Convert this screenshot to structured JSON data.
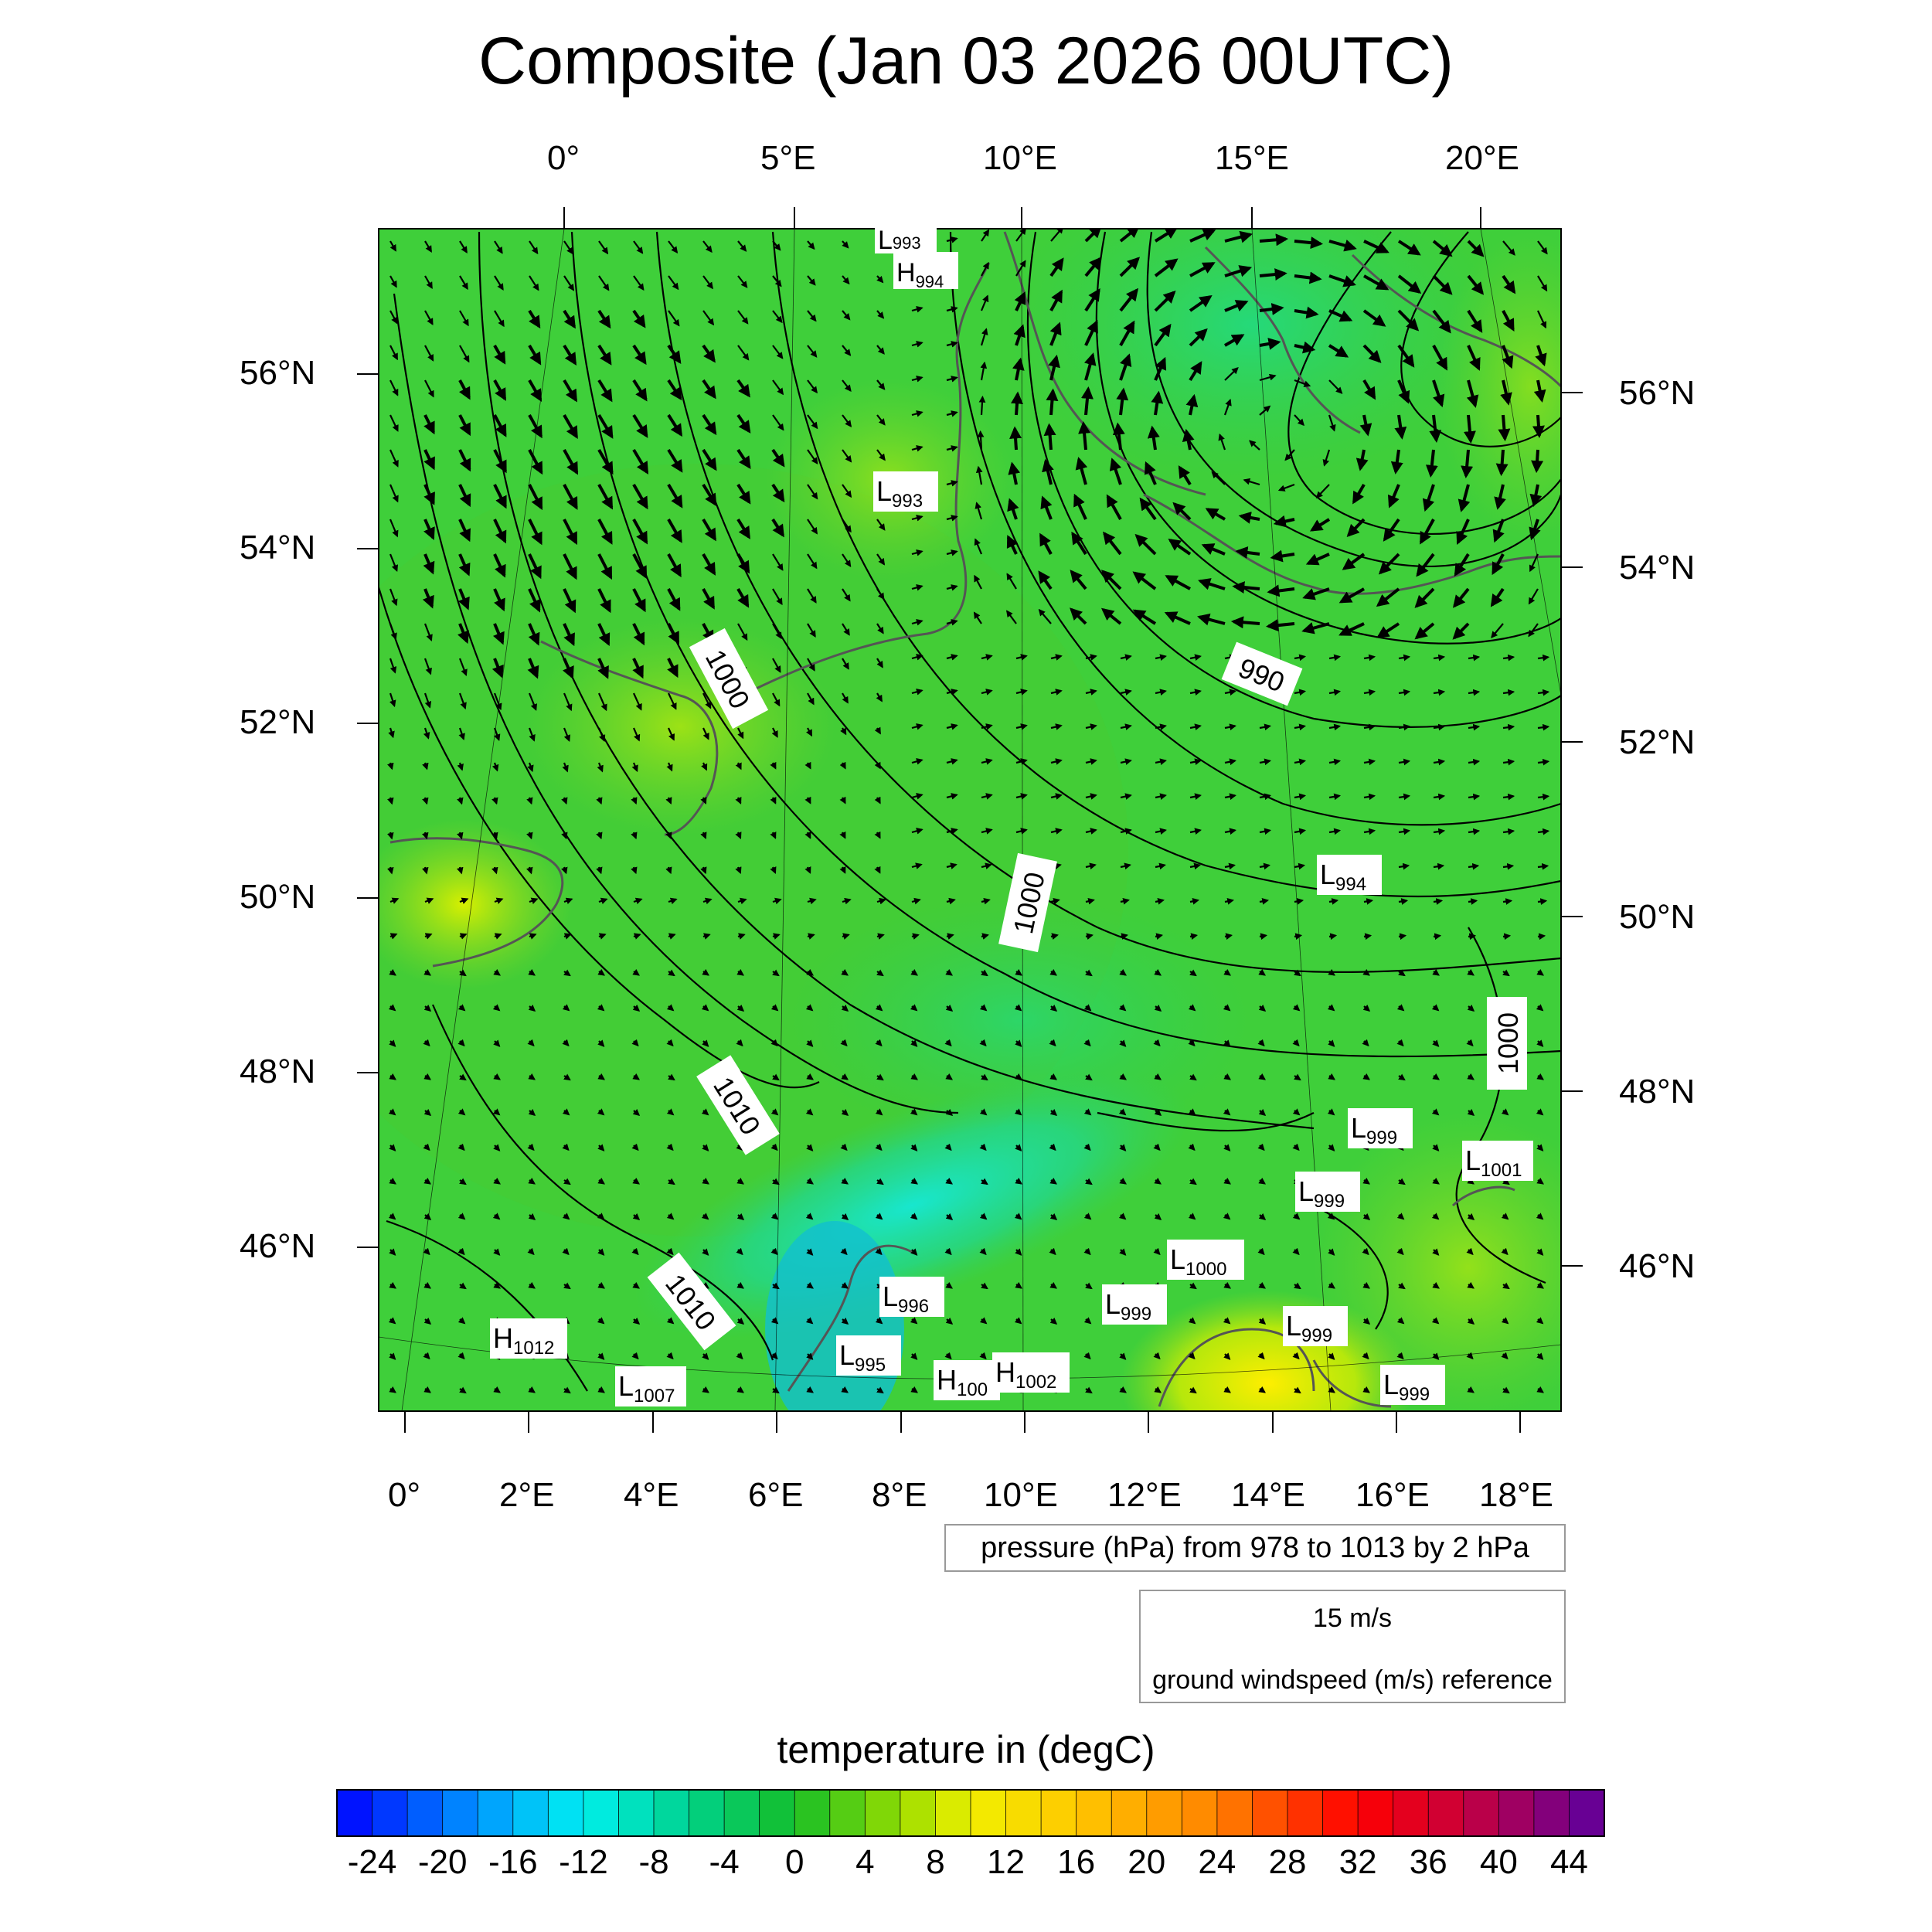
{
  "title": "Composite (Jan 03 2026 00UTC)",
  "top_lon_labels": [
    "0°",
    "5°E",
    "10°E",
    "15°E",
    "20°E"
  ],
  "bottom_lon_labels": [
    "0°",
    "2°E",
    "4°E",
    "6°E",
    "8°E",
    "10°E",
    "12°E",
    "14°E",
    "16°E",
    "18°E"
  ],
  "left_lat_labels": [
    "56°N",
    "54°N",
    "52°N",
    "50°N",
    "48°N",
    "46°N"
  ],
  "right_lat_labels": [
    "56°N",
    "54°N",
    "52°N",
    "50°N",
    "48°N",
    "46°N"
  ],
  "contour_labels": [
    "1000",
    "990",
    "1000",
    "1000",
    "1010",
    "1010"
  ],
  "pressure_centers": [
    {
      "kind": "L",
      "value": "993"
    },
    {
      "kind": "H",
      "value": "994"
    },
    {
      "kind": "L",
      "value": "993"
    },
    {
      "kind": "L",
      "value": "994"
    },
    {
      "kind": "L",
      "value": "999"
    },
    {
      "kind": "L",
      "value": "1001"
    },
    {
      "kind": "L",
      "value": "999"
    },
    {
      "kind": "L",
      "value": "1000"
    },
    {
      "kind": "L",
      "value": "996"
    },
    {
      "kind": "L",
      "value": "999"
    },
    {
      "kind": "L",
      "value": "999"
    },
    {
      "kind": "H",
      "value": "1012"
    },
    {
      "kind": "L",
      "value": "995"
    },
    {
      "kind": "H",
      "value": "100"
    },
    {
      "kind": "H",
      "value": "1002"
    },
    {
      "kind": "L",
      "value": "1007"
    },
    {
      "kind": "L",
      "value": "999"
    }
  ],
  "pressure_note": "pressure (hPa) from 978 to 1013 by 2 hPa",
  "wind_reference": {
    "value": "15 m/s",
    "label": "ground windspeed (m/s) reference"
  },
  "colorbar": {
    "title": "temperature in (degC)",
    "ticks": [
      "-24",
      "-20",
      "-16",
      "-12",
      "-8",
      "-4",
      "0",
      "4",
      "8",
      "12",
      "16",
      "20",
      "24",
      "28",
      "32",
      "36",
      "40",
      "44"
    ],
    "min": -26,
    "max": 46
  }
}
